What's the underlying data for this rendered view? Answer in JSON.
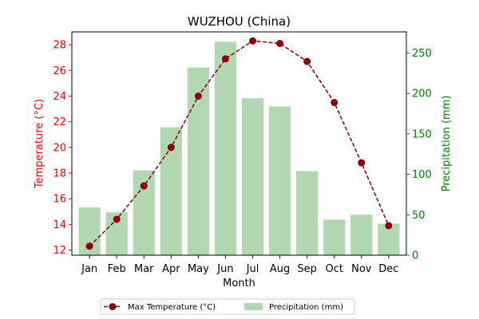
{
  "chart_data": {
    "type": "bar",
    "title": "WUZHOU (China)",
    "xlabel": "Month",
    "ylabel_left": "Temperature (°C)",
    "ylabel_right": "Precipitation (mm)",
    "categories": [
      "Jan",
      "Feb",
      "Mar",
      "Apr",
      "May",
      "Jun",
      "Jul",
      "Aug",
      "Sep",
      "Oct",
      "Nov",
      "Dec"
    ],
    "ylim_left": [
      11.6,
      29.0
    ],
    "ylim_right": [
      0,
      276
    ],
    "yticks_left": [
      12,
      14,
      16,
      18,
      20,
      22,
      24,
      26,
      28
    ],
    "yticks_right": [
      0,
      50,
      100,
      150,
      200,
      250
    ],
    "grid": false,
    "legend_placement": "bottom-center",
    "series": [
      {
        "name": "Max Temperature (°C)",
        "kind": "line",
        "axis": "left",
        "color": "#8b0000",
        "line_style": "dashed",
        "marker": "circle",
        "values": [
          12.3,
          14.4,
          17.0,
          20.0,
          24.0,
          26.9,
          28.3,
          28.1,
          26.7,
          23.5,
          18.8,
          13.9
        ]
      },
      {
        "name": "Precipitation (mm)",
        "kind": "bar",
        "axis": "right",
        "color": "#b2d8b2",
        "values": [
          59,
          53,
          105,
          158,
          232,
          264,
          194,
          184,
          104,
          44,
          50,
          39
        ]
      }
    ]
  },
  "colors": {
    "left_axis": "#ff0000",
    "right_axis": "#008000",
    "text": "#000000"
  }
}
